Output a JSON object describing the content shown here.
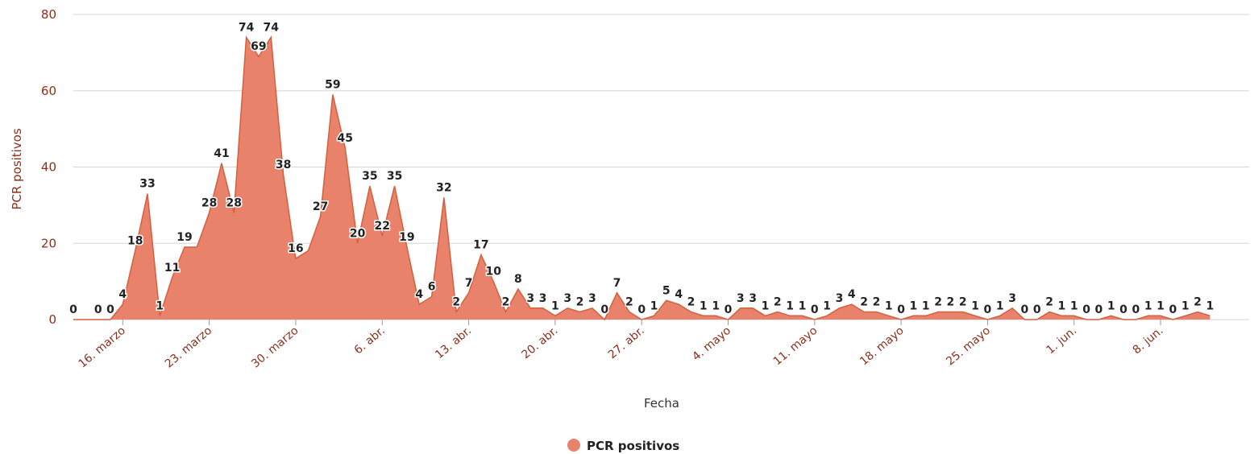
{
  "colors": {
    "series": "#e8826a",
    "series_line": "#d65f3d",
    "grid": "#d6d6d6",
    "axis_text": "#8b2f1c",
    "ytitle": "#8b2f1c"
  },
  "chart_data": {
    "type": "area",
    "xlabel": "Fecha",
    "ylabel": "PCR positivos",
    "ylim": [
      0,
      80
    ],
    "yticks": [
      0,
      20,
      40,
      60,
      80
    ],
    "grid": true,
    "legend": "bottom-center",
    "x_tick_labels": [
      "16. marzo",
      "23. marzo",
      "30. marzo",
      "6. abr.",
      "13. abr.",
      "20. abr.",
      "27. abr.",
      "4. mayo",
      "11. mayo",
      "18. mayo",
      "25. mayo",
      "1. jun.",
      "8. jun."
    ],
    "series": [
      {
        "name": "PCR positivos",
        "values": [
          0,
          0,
          0,
          0,
          4,
          18,
          33,
          1,
          11,
          19,
          19,
          28,
          41,
          28,
          74,
          69,
          74,
          38,
          16,
          18,
          27,
          59,
          45,
          20,
          35,
          22,
          35,
          19,
          4,
          6,
          32,
          2,
          7,
          17,
          10,
          2,
          8,
          3,
          3,
          1,
          3,
          2,
          3,
          0,
          7,
          2,
          0,
          1,
          5,
          4,
          2,
          1,
          1,
          0,
          3,
          3,
          1,
          2,
          1,
          1,
          0,
          1,
          3,
          4,
          2,
          2,
          1,
          0,
          1,
          1,
          2,
          2,
          2,
          1,
          0,
          1,
          3,
          0,
          0,
          2,
          1,
          1,
          0,
          0,
          1,
          0,
          0,
          1,
          1,
          0,
          1,
          2,
          1
        ],
        "labels": [
          "0",
          "",
          "0",
          "0",
          "4",
          "18",
          "33",
          "1",
          "11",
          "19",
          "",
          "28",
          "41",
          "28",
          "74",
          "69",
          "74",
          "38",
          "16",
          "",
          "27",
          "59",
          "45",
          "20",
          "35",
          "22",
          "35",
          "19",
          "4",
          "6",
          "32",
          "2",
          "7",
          "17",
          "10",
          "2",
          "8",
          "3",
          "3",
          "1",
          "3",
          "2",
          "3",
          "0",
          "7",
          "2",
          "0",
          "1",
          "5",
          "4",
          "2",
          "1",
          "1",
          "0",
          "3",
          "3",
          "1",
          "2",
          "1",
          "1",
          "0",
          "1",
          "3",
          "4",
          "2",
          "2",
          "1",
          "0",
          "1",
          "1",
          "2",
          "2",
          "2",
          "1",
          "0",
          "1",
          "3",
          "0",
          "0",
          "2",
          "1",
          "1",
          "0",
          "0",
          "1",
          "0",
          "0",
          "1",
          "1",
          "0",
          "1",
          "2",
          "1"
        ]
      }
    ]
  }
}
